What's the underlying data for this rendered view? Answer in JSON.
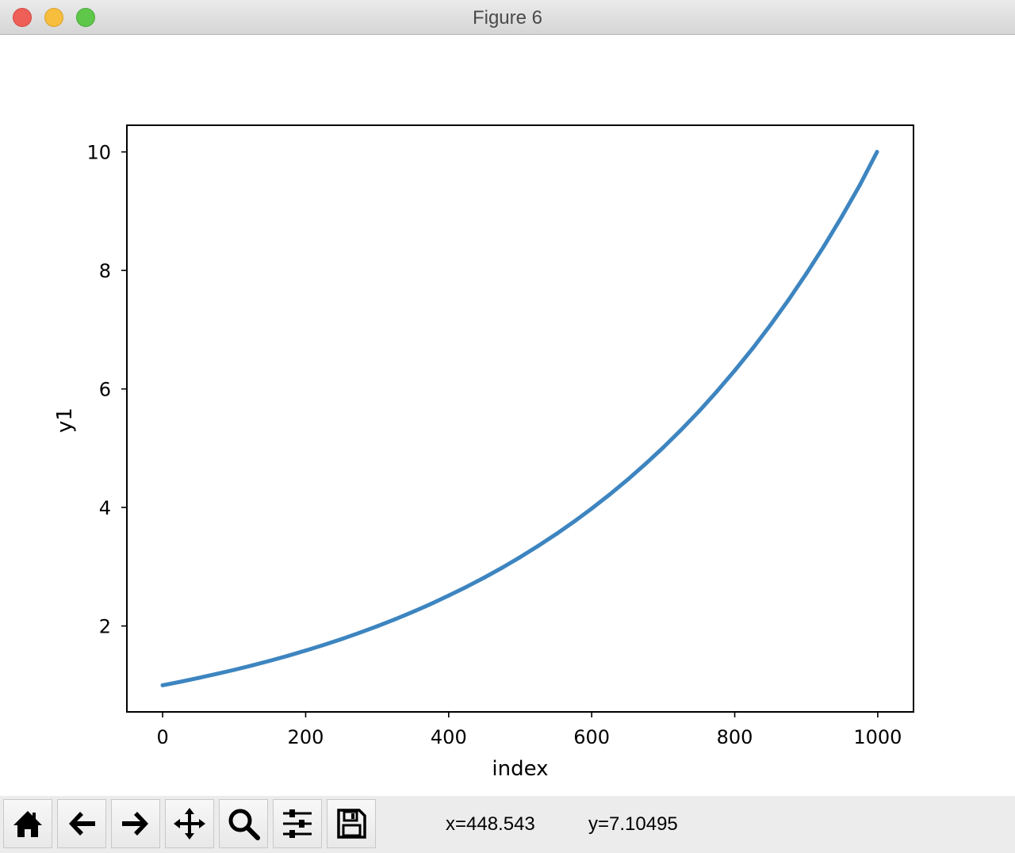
{
  "window": {
    "title": "Figure 6"
  },
  "toolbar": {
    "buttons": [
      "home-icon",
      "back-arrow-icon",
      "forward-arrow-icon",
      "pan-icon",
      "zoom-icon",
      "configure-subplots-icon",
      "save-icon"
    ],
    "x_readout": "x=448.543",
    "y_readout": "y=7.10495"
  },
  "chart_data": {
    "type": "line",
    "title": "",
    "xlabel": "index",
    "ylabel": "y1",
    "xlim": [
      -50,
      1050
    ],
    "ylim": [
      0.55,
      10.45
    ],
    "xticks": [
      "0",
      "200",
      "400",
      "600",
      "800",
      "1000"
    ],
    "yticks": [
      "2",
      "4",
      "6",
      "8",
      "10"
    ],
    "grid": false,
    "color": "#3d85c0",
    "x": [
      0,
      25,
      50,
      75,
      100,
      125,
      150,
      175,
      200,
      225,
      250,
      275,
      300,
      325,
      350,
      375,
      400,
      425,
      450,
      475,
      500,
      525,
      550,
      575,
      600,
      625,
      650,
      675,
      700,
      725,
      750,
      775,
      800,
      825,
      850,
      875,
      900,
      925,
      950,
      975,
      999
    ],
    "y": [
      1.0,
      1.059,
      1.122,
      1.189,
      1.259,
      1.334,
      1.413,
      1.496,
      1.585,
      1.679,
      1.778,
      1.884,
      1.995,
      2.113,
      2.239,
      2.371,
      2.512,
      2.661,
      2.818,
      2.985,
      3.162,
      3.35,
      3.548,
      3.758,
      3.981,
      4.217,
      4.467,
      4.732,
      5.012,
      5.309,
      5.623,
      5.957,
      6.31,
      6.683,
      7.079,
      7.499,
      7.943,
      8.414,
      8.913,
      9.441,
      10.0
    ]
  }
}
